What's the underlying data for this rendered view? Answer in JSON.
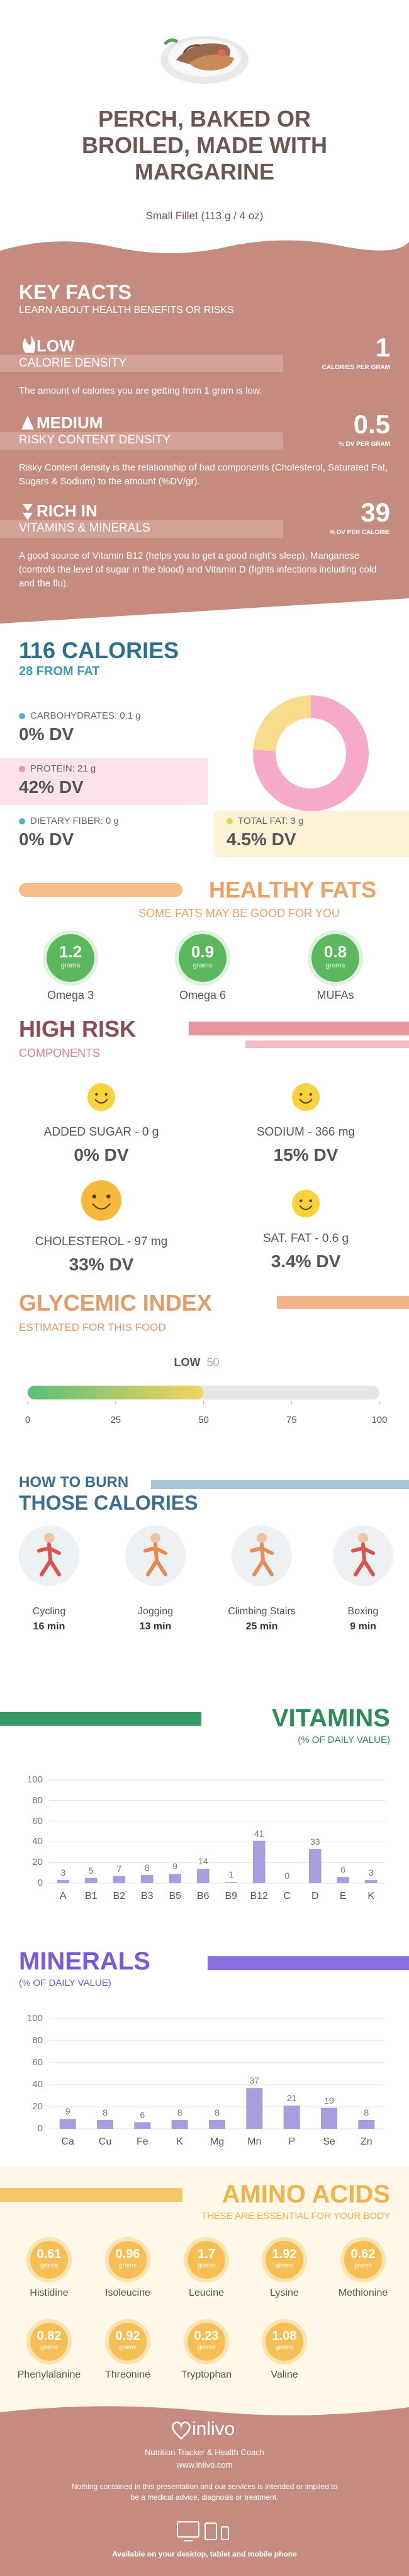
{
  "header": {
    "title": "PERCH, BAKED OR BROILED, MADE WITH MARGARINE",
    "serving": "Small Fillet (113 g / 4 oz)"
  },
  "key_facts": {
    "title": "KEY FACTS",
    "subtitle": "LEARN ABOUT HEALTH BENEFITS OR RISKS",
    "items": [
      {
        "level": "LOW",
        "name": "CALORIE DENSITY",
        "value": 1,
        "unit": "CALORIES PER GRAM",
        "text": "The amount of calories you are getting from 1 gram is low."
      },
      {
        "level": "MEDIUM",
        "name": "RISKY CONTENT DENSITY",
        "value": 0.5,
        "unit": "% DV PER GRAM",
        "text": "Risky Content density is the relationship of bad components (Cholesterol, Saturated Fat, Sugars & Sodium) to the amount (%DV/gr)."
      },
      {
        "level": "RICH IN",
        "name": "VITAMINS & MINERALS",
        "value": 39,
        "unit": "% DV PER CALORIE",
        "text": "A good source of Vitamin B12 (helps you to get a good night's sleep), Manganese (controls the level of sugar in the blood) and Vitamin D (fights infections including cold and the flu)."
      }
    ]
  },
  "calories": {
    "title": "116 CALORIES",
    "from_fat": "28 FROM FAT",
    "nutrients": [
      {
        "label": "CARBOHYDRATES: 0.1 g",
        "dv": "0% DV",
        "color": "#5aaecb"
      },
      {
        "label": "PROTEIN: 21 g",
        "dv": "42% DV",
        "color": "#f18fb4"
      },
      {
        "label": "DIETARY FIBER: 0 g",
        "dv": "0% DV",
        "color": "#5aaecb"
      },
      {
        "label": "TOTAL FAT: 3 g",
        "dv": "4.5% DV",
        "color": "#f5c94d"
      }
    ],
    "chart_data": {
      "type": "donut",
      "values": [
        76,
        24
      ],
      "colors": [
        "#f7a9c9",
        "#f9db8c"
      ]
    }
  },
  "healthy_fats": {
    "title": "HEALTHY FATS",
    "subtitle": "SOME FATS MAY BE GOOD FOR YOU",
    "unit": "grams",
    "items": [
      {
        "value": 1.2,
        "name": "Omega 3"
      },
      {
        "value": 0.9,
        "name": "Omega 6"
      },
      {
        "value": 0.8,
        "name": "MUFAs"
      }
    ]
  },
  "high_risk": {
    "title": "HIGH RISK",
    "subtitle": "COMPONENTS",
    "items": [
      {
        "label": "ADDED SUGAR - 0 g",
        "dv": "0% DV"
      },
      {
        "label": "SODIUM - 366 mg",
        "dv": "15% DV"
      },
      {
        "label": "CHOLESTEROL - 97 mg",
        "dv": "33% DV"
      },
      {
        "label": "SAT. FAT - 0.6 g",
        "dv": "3.4% DV"
      }
    ]
  },
  "glycemic": {
    "title": "GLYCEMIC INDEX",
    "subtitle": "ESTIMATED FOR THIS FOOD",
    "chart_data": {
      "type": "gauge-bar",
      "label": "LOW",
      "value": 50,
      "xlim": [
        0,
        100
      ],
      "xticks": [
        0,
        25,
        50,
        75,
        100
      ]
    }
  },
  "burn": {
    "title_line1": "HOW TO BURN",
    "title_line2": "THOSE CALORIES",
    "activities": [
      {
        "name": "Cycling",
        "time": "16 min"
      },
      {
        "name": "Jogging",
        "time": "13 min"
      },
      {
        "name": "Climbing Stairs",
        "time": "25 min"
      },
      {
        "name": "Boxing",
        "time": "9 min"
      }
    ]
  },
  "vitamins": {
    "chart_data": {
      "type": "bar",
      "title": "VITAMINS",
      "subtitle": "(% OF DAILY VALUE)",
      "categories": [
        "A",
        "B1",
        "B2",
        "B3",
        "B5",
        "B6",
        "B9",
        "B12",
        "C",
        "D",
        "E",
        "K"
      ],
      "values": [
        3,
        5,
        7,
        8,
        9,
        14,
        1,
        41,
        0,
        33,
        6,
        3
      ],
      "color": "#a99cdf",
      "ylim": [
        0,
        100
      ],
      "yticks": [
        0,
        20,
        40,
        60,
        80,
        100
      ],
      "grid": true
    }
  },
  "minerals": {
    "chart_data": {
      "type": "bar",
      "title": "MINERALS",
      "subtitle": "(% OF DAILY VALUE)",
      "categories": [
        "Ca",
        "Cu",
        "Fe",
        "K",
        "Mg",
        "Mn",
        "P",
        "Se",
        "Zn"
      ],
      "values": [
        9,
        8,
        6,
        8,
        8,
        37,
        21,
        19,
        8
      ],
      "color": "#a99cdf",
      "ylim": [
        0,
        100
      ],
      "yticks": [
        0,
        20,
        40,
        60,
        80,
        100
      ],
      "grid": true
    }
  },
  "amino_acids": {
    "title": "AMINO ACIDS",
    "subtitle": "THESE ARE ESSENTIAL FOR YOUR BODY",
    "unit": "grams",
    "items": [
      {
        "value": 0.61,
        "name": "Histidine"
      },
      {
        "value": 0.96,
        "name": "Isoleucine"
      },
      {
        "value": 1.7,
        "name": "Leucine"
      },
      {
        "value": 1.92,
        "name": "Lysine"
      },
      {
        "value": 0.62,
        "name": "Methionine"
      },
      {
        "value": 0.82,
        "name": "Phenylalanine"
      },
      {
        "value": 0.92,
        "name": "Threonine"
      },
      {
        "value": 0.23,
        "name": "Tryptophan"
      },
      {
        "value": 1.08,
        "name": "Valine"
      }
    ]
  },
  "footer": {
    "brand": "inlivo",
    "tagline": "Nutrition Tracker & Health Coach",
    "url": "www.inlivo.com",
    "disclaimer": "Nothing contained in this presentation and our services is intended or implied to be a medical advice, diagnosis or treatment.",
    "availability": "Available on your desktop, tablet and mobile phone"
  }
}
